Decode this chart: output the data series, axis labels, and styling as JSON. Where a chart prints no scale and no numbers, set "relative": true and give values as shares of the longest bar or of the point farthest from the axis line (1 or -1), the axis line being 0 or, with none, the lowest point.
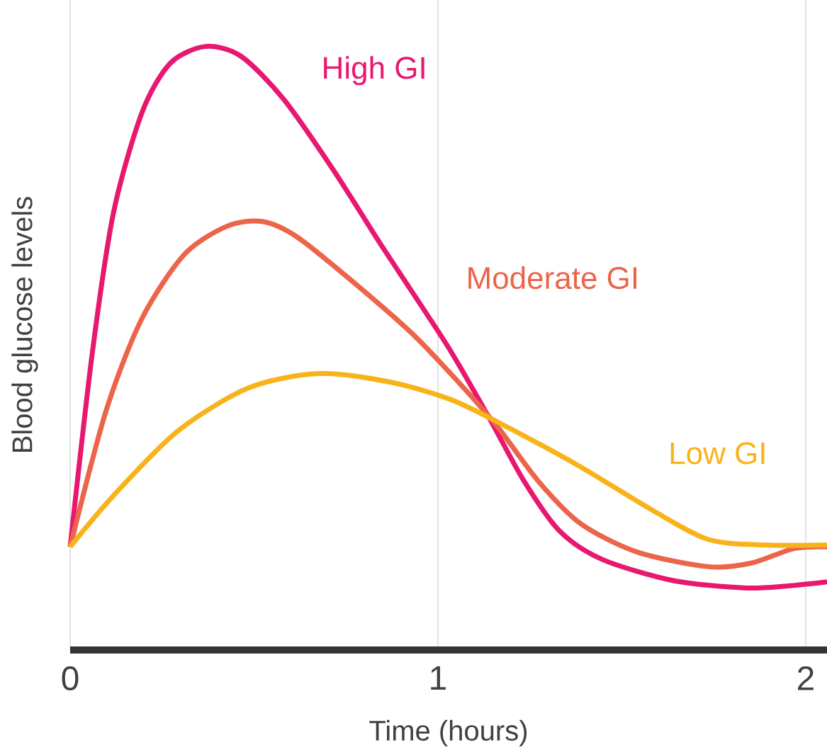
{
  "chart_data": {
    "type": "line",
    "xlabel": "Time (hours)",
    "ylabel": "Blood glucose levels",
    "relative": true,
    "xlim": [
      0,
      2.058
    ],
    "xticks": [
      0,
      1,
      2
    ],
    "grid": "x",
    "series": [
      {
        "name": "High GI",
        "color": "#e8176f",
        "x": [
          0,
          0.06,
          0.118,
          0.195,
          0.272,
          0.368,
          0.464,
          0.58,
          0.715,
          0.85,
          0.965,
          1.039,
          1.139,
          1.235,
          1.331,
          1.447,
          1.64,
          1.832,
          1.948,
          2.058
        ],
        "values": [
          0.171,
          0.491,
          0.725,
          0.89,
          0.972,
          1.0,
          0.984,
          0.913,
          0.796,
          0.667,
          0.561,
          0.491,
          0.385,
          0.279,
          0.197,
          0.15,
          0.115,
          0.103,
          0.106,
          0.113
        ]
      },
      {
        "name": "Moderate GI",
        "color": "#ec6449",
        "x": [
          0,
          0.098,
          0.195,
          0.31,
          0.426,
          0.522,
          0.618,
          0.773,
          0.927,
          1.039,
          1.158,
          1.274,
          1.389,
          1.543,
          1.736,
          1.852,
          1.967,
          2.058
        ],
        "values": [
          0.171,
          0.397,
          0.549,
          0.655,
          0.702,
          0.71,
          0.684,
          0.608,
          0.526,
          0.455,
          0.373,
          0.279,
          0.209,
          0.162,
          0.138,
          0.144,
          0.168,
          0.171
        ]
      },
      {
        "name": "Low GI",
        "color": "#f9b31a",
        "x": [
          0,
          0.118,
          0.291,
          0.484,
          0.676,
          0.869,
          1.039,
          1.196,
          1.389,
          1.582,
          1.736,
          1.89,
          2.058
        ],
        "values": [
          0.171,
          0.256,
          0.362,
          0.434,
          0.458,
          0.444,
          0.414,
          0.367,
          0.303,
          0.232,
          0.183,
          0.174,
          0.174
        ]
      }
    ]
  }
}
